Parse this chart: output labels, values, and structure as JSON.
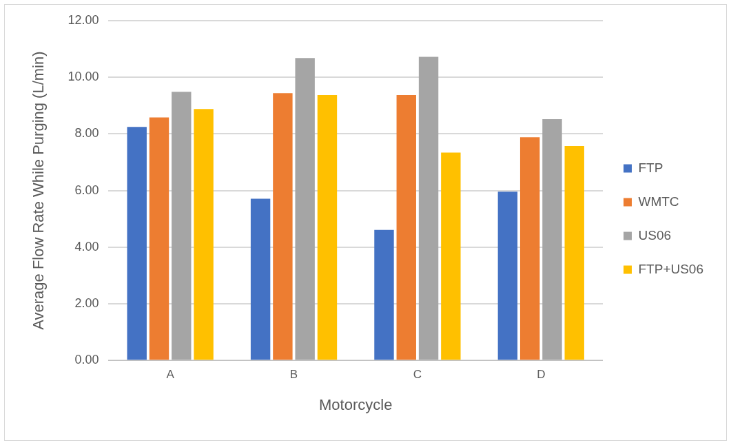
{
  "chart_data": {
    "type": "bar",
    "xlabel": "Motorcycle",
    "ylabel": "Average Flow Rate While Purging (L/min)",
    "categories": [
      "A",
      "B",
      "C",
      "D"
    ],
    "series": [
      {
        "name": "FTP",
        "color": "#4472c4",
        "values": [
          8.25,
          5.71,
          4.61,
          5.96
        ]
      },
      {
        "name": "WMTC",
        "color": "#ed7d31",
        "values": [
          8.58,
          9.44,
          9.37,
          7.88
        ]
      },
      {
        "name": "US06",
        "color": "#a5a5a5",
        "values": [
          9.49,
          10.68,
          10.72,
          8.52
        ]
      },
      {
        "name": "FTP+US06",
        "color": "#ffc000",
        "values": [
          8.88,
          9.37,
          7.34,
          7.57
        ]
      }
    ],
    "ylim": [
      0,
      12
    ],
    "yticks": [
      {
        "value": 0,
        "label": "0.00"
      },
      {
        "value": 2,
        "label": "2.00"
      },
      {
        "value": 4,
        "label": "4.00"
      },
      {
        "value": 6,
        "label": "6.00"
      },
      {
        "value": 8,
        "label": "8.00"
      },
      {
        "value": 10,
        "label": "10.00"
      },
      {
        "value": 12,
        "label": "12.00"
      }
    ],
    "grid": "y",
    "legend": "right"
  }
}
